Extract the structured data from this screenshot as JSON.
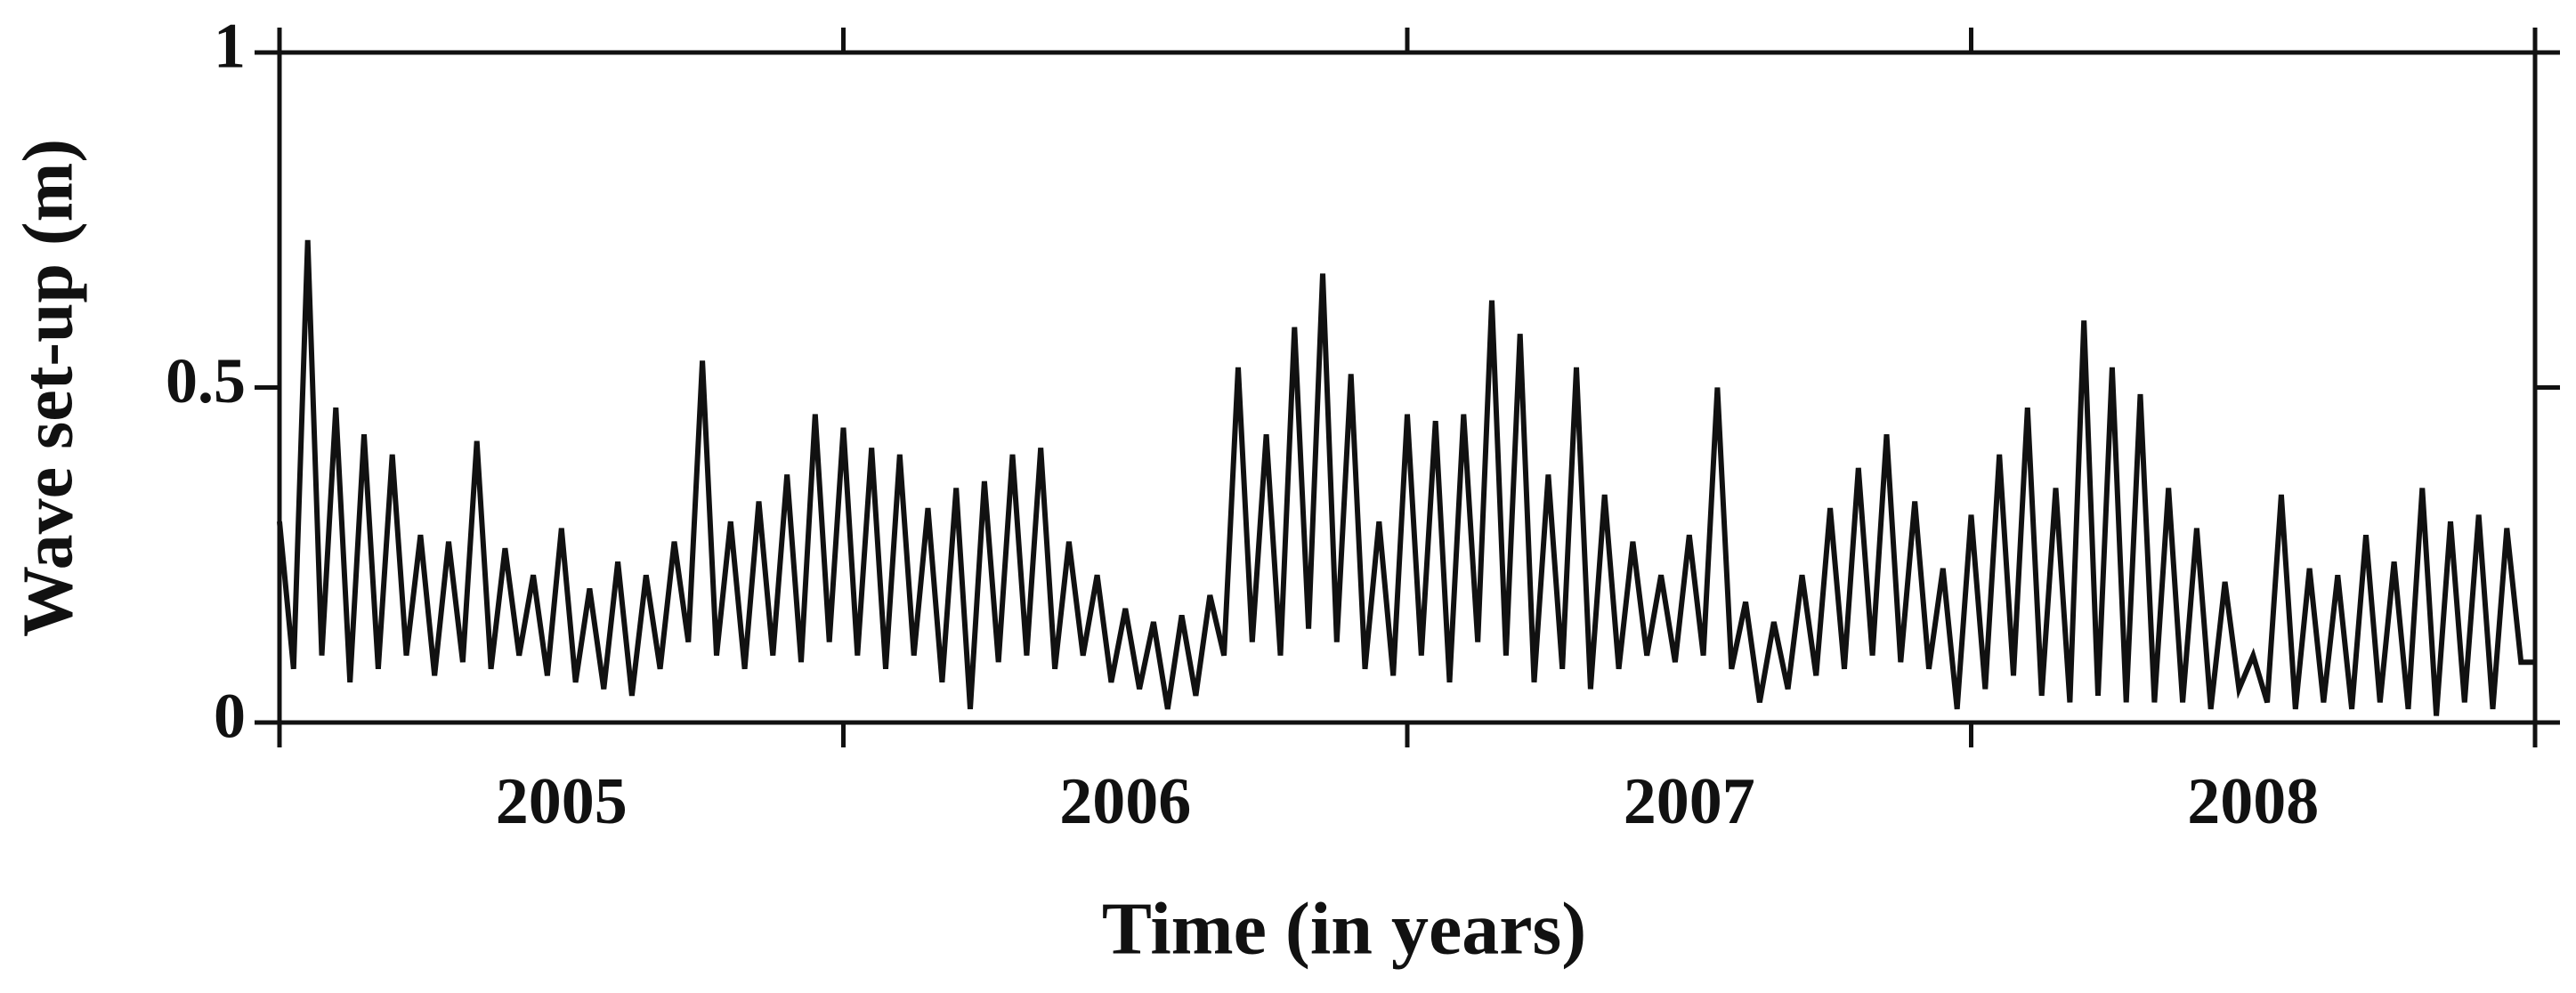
{
  "chart_data": {
    "type": "line",
    "x_label": "Time (in years)",
    "y_label": "Wave set-up (m)",
    "categories": [
      "2005",
      "2006",
      "2007",
      "2008"
    ],
    "xlim": [
      2005,
      2009
    ],
    "ylim": [
      0,
      1
    ],
    "yticks": [
      0,
      0.5,
      1
    ],
    "color": "#111111",
    "x": [
      2005,
      2005.025,
      2005.05,
      2005.075,
      2005.1,
      2005.125,
      2005.15,
      2005.175,
      2005.2,
      2005.225,
      2005.25,
      2005.275,
      2005.3,
      2005.325,
      2005.35,
      2005.375,
      2005.4,
      2005.425,
      2005.45,
      2005.475,
      2005.5,
      2005.525,
      2005.55,
      2005.575,
      2005.6,
      2005.625,
      2005.65,
      2005.675,
      2005.7,
      2005.725,
      2005.75,
      2005.775,
      2005.8,
      2005.825,
      2005.85,
      2005.875,
      2005.9,
      2005.925,
      2005.95,
      2005.975,
      2006,
      2006.025,
      2006.05,
      2006.075,
      2006.1,
      2006.125,
      2006.15,
      2006.175,
      2006.2,
      2006.225,
      2006.25,
      2006.275,
      2006.3,
      2006.325,
      2006.35,
      2006.375,
      2006.4,
      2006.425,
      2006.45,
      2006.475,
      2006.5,
      2006.525,
      2006.55,
      2006.575,
      2006.6,
      2006.625,
      2006.65,
      2006.675,
      2006.7,
      2006.725,
      2006.75,
      2006.775,
      2006.8,
      2006.825,
      2006.85,
      2006.875,
      2006.9,
      2006.925,
      2006.95,
      2006.975,
      2007,
      2007.025,
      2007.05,
      2007.075,
      2007.1,
      2007.125,
      2007.15,
      2007.175,
      2007.2,
      2007.225,
      2007.25,
      2007.275,
      2007.3,
      2007.325,
      2007.35,
      2007.375,
      2007.4,
      2007.425,
      2007.45,
      2007.475,
      2007.5,
      2007.525,
      2007.55,
      2007.575,
      2007.6,
      2007.625,
      2007.65,
      2007.675,
      2007.7,
      2007.725,
      2007.75,
      2007.775,
      2007.8,
      2007.825,
      2007.85,
      2007.875,
      2007.9,
      2007.925,
      2007.95,
      2007.975,
      2008,
      2008.025,
      2008.05,
      2008.075,
      2008.1,
      2008.125,
      2008.15,
      2008.175,
      2008.2,
      2008.225,
      2008.25,
      2008.275,
      2008.3,
      2008.325,
      2008.35,
      2008.375,
      2008.4,
      2008.425,
      2008.45,
      2008.475,
      2008.5,
      2008.525,
      2008.55,
      2008.575,
      2008.6,
      2008.625,
      2008.65,
      2008.675,
      2008.7,
      2008.725,
      2008.75,
      2008.775,
      2008.8,
      2008.825,
      2008.85,
      2008.875,
      2008.9,
      2008.925,
      2008.95,
      2008.975,
      2009
    ],
    "values": [
      0.3,
      0.08,
      0.72,
      0.1,
      0.47,
      0.06,
      0.43,
      0.08,
      0.4,
      0.1,
      0.28,
      0.07,
      0.27,
      0.09,
      0.42,
      0.08,
      0.26,
      0.1,
      0.22,
      0.07,
      0.29,
      0.06,
      0.2,
      0.05,
      0.24,
      0.04,
      0.22,
      0.08,
      0.27,
      0.12,
      0.54,
      0.1,
      0.3,
      0.08,
      0.33,
      0.1,
      0.37,
      0.09,
      0.46,
      0.12,
      0.44,
      0.1,
      0.41,
      0.08,
      0.4,
      0.1,
      0.32,
      0.06,
      0.35,
      0.02,
      0.36,
      0.09,
      0.4,
      0.1,
      0.41,
      0.08,
      0.27,
      0.1,
      0.22,
      0.06,
      0.17,
      0.05,
      0.15,
      0.02,
      0.16,
      0.04,
      0.19,
      0.1,
      0.53,
      0.12,
      0.43,
      0.1,
      0.59,
      0.14,
      0.67,
      0.12,
      0.52,
      0.08,
      0.3,
      0.07,
      0.46,
      0.1,
      0.45,
      0.06,
      0.46,
      0.12,
      0.63,
      0.1,
      0.58,
      0.06,
      0.37,
      0.08,
      0.53,
      0.05,
      0.34,
      0.08,
      0.27,
      0.1,
      0.22,
      0.09,
      0.28,
      0.1,
      0.5,
      0.08,
      0.18,
      0.03,
      0.15,
      0.05,
      0.22,
      0.07,
      0.32,
      0.08,
      0.38,
      0.1,
      0.43,
      0.09,
      0.33,
      0.08,
      0.23,
      0.02,
      0.31,
      0.05,
      0.4,
      0.07,
      0.47,
      0.04,
      0.35,
      0.03,
      0.6,
      0.04,
      0.53,
      0.03,
      0.49,
      0.03,
      0.35,
      0.03,
      0.29,
      0.02,
      0.21,
      0.05,
      0.1,
      0.03,
      0.34,
      0.02,
      0.23,
      0.03,
      0.22,
      0.02,
      0.28,
      0.03,
      0.24,
      0.02,
      0.35,
      0.01,
      0.3,
      0.03,
      0.31,
      0.02,
      0.29,
      0.09,
      0.09
    ]
  }
}
